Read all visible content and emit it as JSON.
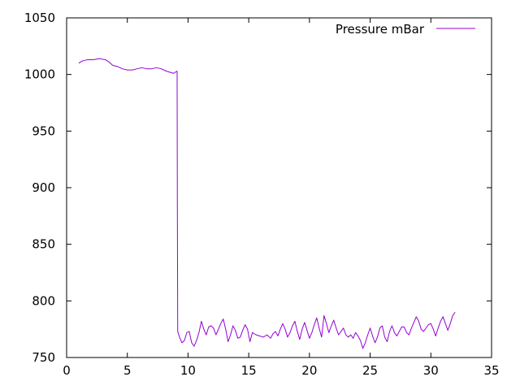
{
  "chart_data": {
    "type": "line",
    "title": "",
    "xlabel": "",
    "ylabel": "",
    "xlim": [
      0,
      35
    ],
    "ylim": [
      750,
      1050
    ],
    "xticks": [
      0,
      5,
      10,
      15,
      20,
      25,
      30,
      35
    ],
    "yticks": [
      750,
      800,
      850,
      900,
      950,
      1000,
      1050
    ],
    "grid": false,
    "legend_position": "top-right",
    "series": [
      {
        "name": "Pressure mBar",
        "color": "#9400d3",
        "points": [
          [
            1.0,
            1010
          ],
          [
            1.3,
            1012
          ],
          [
            1.7,
            1013
          ],
          [
            2.2,
            1013
          ],
          [
            2.7,
            1014
          ],
          [
            3.2,
            1013
          ],
          [
            3.5,
            1011
          ],
          [
            3.8,
            1008
          ],
          [
            4.2,
            1007
          ],
          [
            4.6,
            1005
          ],
          [
            5.0,
            1004
          ],
          [
            5.4,
            1004
          ],
          [
            5.8,
            1005
          ],
          [
            6.2,
            1006
          ],
          [
            6.6,
            1005
          ],
          [
            7.0,
            1005
          ],
          [
            7.4,
            1006
          ],
          [
            7.8,
            1005
          ],
          [
            8.2,
            1003
          ],
          [
            8.5,
            1002
          ],
          [
            8.8,
            1001
          ],
          [
            9.1,
            1003
          ],
          [
            9.12,
            885
          ],
          [
            9.15,
            773
          ],
          [
            9.3,
            768
          ],
          [
            9.5,
            763
          ],
          [
            9.7,
            765
          ],
          [
            9.9,
            772
          ],
          [
            10.1,
            773
          ],
          [
            10.3,
            763
          ],
          [
            10.5,
            760
          ],
          [
            10.7,
            765
          ],
          [
            10.9,
            772
          ],
          [
            11.1,
            782
          ],
          [
            11.3,
            775
          ],
          [
            11.5,
            770
          ],
          [
            11.7,
            777
          ],
          [
            11.9,
            778
          ],
          [
            12.1,
            776
          ],
          [
            12.3,
            770
          ],
          [
            12.5,
            775
          ],
          [
            12.7,
            780
          ],
          [
            12.9,
            784
          ],
          [
            13.1,
            775
          ],
          [
            13.3,
            764
          ],
          [
            13.5,
            770
          ],
          [
            13.7,
            778
          ],
          [
            13.9,
            774
          ],
          [
            14.1,
            767
          ],
          [
            14.3,
            768
          ],
          [
            14.5,
            774
          ],
          [
            14.7,
            779
          ],
          [
            14.9,
            775
          ],
          [
            15.1,
            764
          ],
          [
            15.3,
            772
          ],
          [
            15.6,
            770
          ],
          [
            15.9,
            769
          ],
          [
            16.2,
            768
          ],
          [
            16.5,
            770
          ],
          [
            16.8,
            767
          ],
          [
            17.0,
            771
          ],
          [
            17.2,
            773
          ],
          [
            17.4,
            769
          ],
          [
            17.6,
            775
          ],
          [
            17.8,
            780
          ],
          [
            18.0,
            775
          ],
          [
            18.2,
            768
          ],
          [
            18.4,
            772
          ],
          [
            18.6,
            778
          ],
          [
            18.8,
            782
          ],
          [
            19.0,
            773
          ],
          [
            19.2,
            766
          ],
          [
            19.4,
            775
          ],
          [
            19.6,
            781
          ],
          [
            19.8,
            774
          ],
          [
            20.0,
            767
          ],
          [
            20.2,
            772
          ],
          [
            20.4,
            779
          ],
          [
            20.6,
            785
          ],
          [
            20.8,
            776
          ],
          [
            21.0,
            768
          ],
          [
            21.2,
            787
          ],
          [
            21.4,
            780
          ],
          [
            21.6,
            772
          ],
          [
            21.8,
            778
          ],
          [
            22.0,
            783
          ],
          [
            22.2,
            776
          ],
          [
            22.4,
            770
          ],
          [
            22.6,
            773
          ],
          [
            22.8,
            776
          ],
          [
            23.0,
            770
          ],
          [
            23.2,
            768
          ],
          [
            23.4,
            770
          ],
          [
            23.6,
            767
          ],
          [
            23.8,
            772
          ],
          [
            24.0,
            769
          ],
          [
            24.2,
            765
          ],
          [
            24.4,
            758
          ],
          [
            24.6,
            763
          ],
          [
            24.8,
            770
          ],
          [
            25.0,
            776
          ],
          [
            25.2,
            769
          ],
          [
            25.4,
            763
          ],
          [
            25.6,
            768
          ],
          [
            25.8,
            776
          ],
          [
            26.0,
            778
          ],
          [
            26.2,
            768
          ],
          [
            26.4,
            764
          ],
          [
            26.6,
            773
          ],
          [
            26.8,
            778
          ],
          [
            27.0,
            772
          ],
          [
            27.2,
            769
          ],
          [
            27.4,
            773
          ],
          [
            27.6,
            777
          ],
          [
            27.8,
            777
          ],
          [
            28.0,
            772
          ],
          [
            28.2,
            770
          ],
          [
            28.4,
            776
          ],
          [
            28.6,
            781
          ],
          [
            28.8,
            786
          ],
          [
            29.0,
            782
          ],
          [
            29.2,
            775
          ],
          [
            29.4,
            773
          ],
          [
            29.6,
            776
          ],
          [
            29.8,
            779
          ],
          [
            30.0,
            780
          ],
          [
            30.2,
            775
          ],
          [
            30.4,
            769
          ],
          [
            30.6,
            776
          ],
          [
            30.8,
            782
          ],
          [
            31.0,
            786
          ],
          [
            31.2,
            780
          ],
          [
            31.4,
            774
          ],
          [
            31.6,
            780
          ],
          [
            31.8,
            787
          ],
          [
            32.0,
            790
          ]
        ]
      }
    ]
  }
}
